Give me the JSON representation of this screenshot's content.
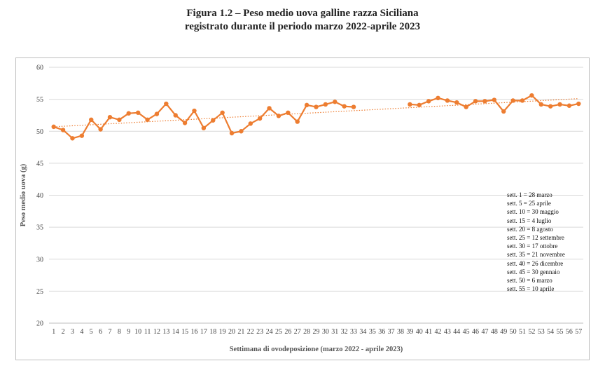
{
  "title": {
    "line1": "Figura 1.2 – Peso medio uova galline razza Siciliana",
    "line2": "registrato durante il periodo marzo 2022-aprile 2023"
  },
  "legend_notes": [
    "sett. 1 = 28 marzo",
    "sett. 5 = 25 aprile",
    "sett. 10 = 30 maggio",
    "sett. 15 = 4 luglio",
    "sett. 20 = 8 agosto",
    "sett. 25 = 12 settembre",
    "sett. 30 = 17 ottobre",
    "sett. 35 = 21 novembre",
    "sett. 40 = 26 dicembre",
    "sett. 45 = 30 gennaio",
    "sett. 50 = 6 marzo",
    "sett. 55 = 10 aprile"
  ],
  "colors": {
    "series": "#ED7D31",
    "grid": "#d9d9d9",
    "axis": "#bfbfbf"
  },
  "chart_data": {
    "type": "line",
    "title": "Figura 1.2 – Peso medio uova galline razza Siciliana registrato durante il periodo marzo 2022-aprile 2023",
    "xlabel": "Settimana di ovodeposizione (marzo 2022 - aprile 2023)",
    "ylabel": "Peso medio uova (g)",
    "ylim": [
      20,
      60
    ],
    "yticks": [
      20,
      25,
      30,
      35,
      40,
      45,
      50,
      55,
      60
    ],
    "grid": true,
    "trendline": {
      "type": "linear",
      "style": "dotted",
      "start": [
        1,
        50.7
      ],
      "end": [
        57,
        55.1
      ]
    },
    "categories": [
      "1",
      "2",
      "3",
      "4",
      "5",
      "6",
      "7",
      "8",
      "9",
      "10",
      "11",
      "12",
      "13",
      "14",
      "15",
      "16",
      "17",
      "18",
      "19",
      "20",
      "21",
      "22",
      "23",
      "24",
      "25",
      "26",
      "27",
      "28",
      "29",
      "30",
      "31",
      "32",
      "33",
      "34",
      "35",
      "36",
      "37",
      "38",
      "39",
      "40",
      "41",
      "42",
      "43",
      "44",
      "45",
      "46",
      "47",
      "48",
      "49",
      "50",
      "51",
      "52",
      "53",
      "54",
      "55",
      "56",
      "57"
    ],
    "series": [
      {
        "values": [
          50.7,
          50.2,
          48.9,
          49.3,
          51.8,
          50.3,
          52.2,
          51.8,
          52.8,
          52.9,
          51.8,
          52.7,
          54.3,
          52.5,
          51.3,
          53.2,
          50.5,
          51.7,
          52.9,
          49.7,
          50.0,
          51.2,
          52.0,
          53.6,
          52.4,
          52.9,
          51.5,
          54.1,
          53.8,
          54.2,
          54.6,
          53.9,
          53.8,
          null,
          null,
          null,
          null,
          null,
          54.2,
          54.1,
          54.7,
          55.2,
          54.8,
          54.5,
          53.8,
          54.7,
          54.7,
          54.9,
          53.1,
          54.8,
          54.8,
          55.6,
          54.2,
          53.9,
          54.2,
          54.0,
          54.3
        ]
      }
    ]
  }
}
